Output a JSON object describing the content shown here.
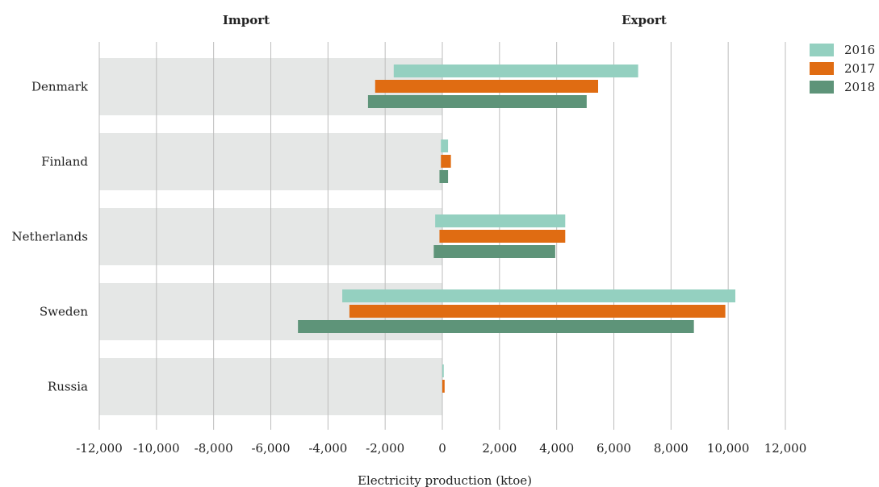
{
  "chart_data": {
    "type": "bar",
    "orientation": "horizontal",
    "headers": {
      "left": "Import",
      "right": "Export"
    },
    "xlabel": "Electricity production (ktoe)",
    "xlim": [
      -12000,
      12000
    ],
    "xticks": [
      -12000,
      -10000,
      -8000,
      -6000,
      -4000,
      -2000,
      0,
      2000,
      4000,
      6000,
      8000,
      10000,
      12000
    ],
    "xtick_labels": [
      "-12,000",
      "-10,000",
      "-8,000",
      "-6,000",
      "-4,000",
      "-2,000",
      "0",
      "2,000",
      "4,000",
      "6,000",
      "8,000",
      "10,000",
      "12,000"
    ],
    "categories": [
      "Denmark",
      "Finland",
      "Netherlands",
      "Sweden",
      "Russia"
    ],
    "grid": true,
    "legend_position": "top-right",
    "series": [
      {
        "name": "2016",
        "color": "#94d0c0",
        "import": [
          -1700,
          -50,
          -250,
          -3500,
          0
        ],
        "export": [
          6850,
          200,
          4300,
          10250,
          50
        ]
      },
      {
        "name": "2017",
        "color": "#e06c12",
        "import": [
          -2350,
          -50,
          -100,
          -3250,
          0
        ],
        "export": [
          5450,
          300,
          4300,
          9900,
          80
        ]
      },
      {
        "name": "2018",
        "color": "#5e9479",
        "import": [
          -2600,
          -100,
          -300,
          -5050,
          0
        ],
        "export": [
          5050,
          200,
          3950,
          8800,
          0
        ]
      }
    ]
  }
}
